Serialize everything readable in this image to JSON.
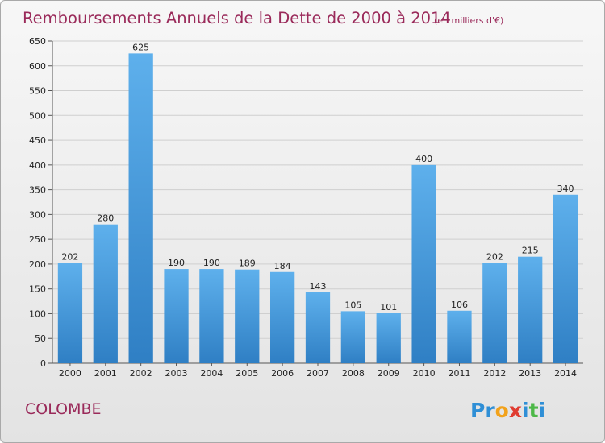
{
  "chart_data": {
    "type": "bar",
    "title": "Remboursements Annuels de la Dette de 2000 à 2014",
    "subtitle": "(en milliers d'€)",
    "categories": [
      "2000",
      "2001",
      "2002",
      "2003",
      "2004",
      "2005",
      "2006",
      "2007",
      "2008",
      "2009",
      "2010",
      "2011",
      "2012",
      "2013",
      "2014"
    ],
    "values": [
      202,
      280,
      625,
      190,
      190,
      189,
      184,
      143,
      105,
      101,
      400,
      106,
      202,
      215,
      340
    ],
    "xlabel": "",
    "ylabel": "",
    "ylim": [
      0,
      650
    ],
    "yticks": [
      0,
      50,
      100,
      150,
      200,
      250,
      300,
      350,
      400,
      450,
      500,
      550,
      600,
      650
    ],
    "grid": true,
    "bar_color": "#4a9fe0"
  },
  "footer": {
    "commune": "COLOMBE",
    "logo_letters": [
      {
        "char": "P",
        "color": "#2f8fd6"
      },
      {
        "char": "r",
        "color": "#2f8fd6"
      },
      {
        "char": "o",
        "color": "#f2a21b"
      },
      {
        "char": "x",
        "color": "#e03c31"
      },
      {
        "char": "i",
        "color": "#2f8fd6"
      },
      {
        "char": "t",
        "color": "#4db848"
      },
      {
        "char": "i",
        "color": "#2f8fd6"
      }
    ]
  }
}
